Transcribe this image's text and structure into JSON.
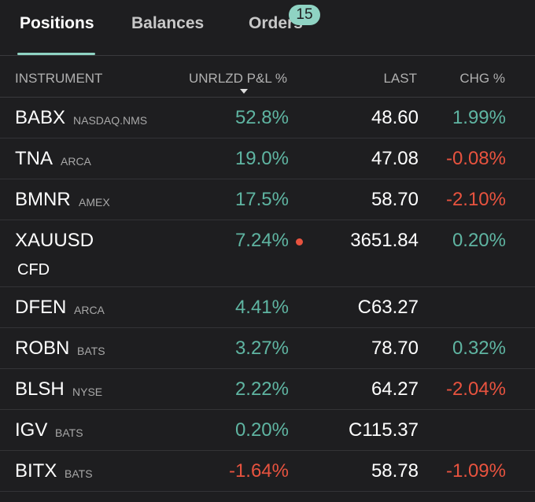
{
  "tabs": [
    {
      "label": "Positions"
    },
    {
      "label": "Balances"
    },
    {
      "label": "Orders",
      "badge": "15"
    }
  ],
  "table": {
    "headers": [
      "INSTRUMENT",
      "UNRLZD P&L %",
      "LAST",
      "CHG %"
    ],
    "rows": [
      {
        "symbol": "BABX",
        "exchange": "NASDAQ.NMS",
        "pnl": "52.8%",
        "last": "48.60",
        "chg": "1.99%"
      },
      {
        "symbol": "TNA",
        "exchange": "ARCA",
        "pnl": "19.0%",
        "last": "47.08",
        "chg": "-0.08%"
      },
      {
        "symbol": "BMNR",
        "exchange": "AMEX",
        "pnl": "17.5%",
        "last": "58.70",
        "chg": "-2.10%"
      },
      {
        "symbol": "XAUUSD",
        "sub": "CFD",
        "pnl": "7.24%",
        "last": "3651.84",
        "chg": "0.20%"
      },
      {
        "symbol": "DFEN",
        "exchange": "ARCA",
        "pnl": "4.41%",
        "last": "C63.27"
      },
      {
        "symbol": "ROBN",
        "exchange": "BATS",
        "pnl": "3.27%",
        "last": "78.70",
        "chg": "0.32%"
      },
      {
        "symbol": "BLSH",
        "exchange": "NYSE",
        "pnl": "2.22%",
        "last": "64.27",
        "chg": "-2.04%"
      },
      {
        "symbol": "IGV",
        "exchange": "BATS",
        "pnl": "0.20%",
        "last": "C115.37"
      },
      {
        "symbol": "BITX",
        "exchange": "BATS",
        "pnl": "-1.64%",
        "last": "58.78",
        "chg": "-1.09%"
      }
    ]
  }
}
